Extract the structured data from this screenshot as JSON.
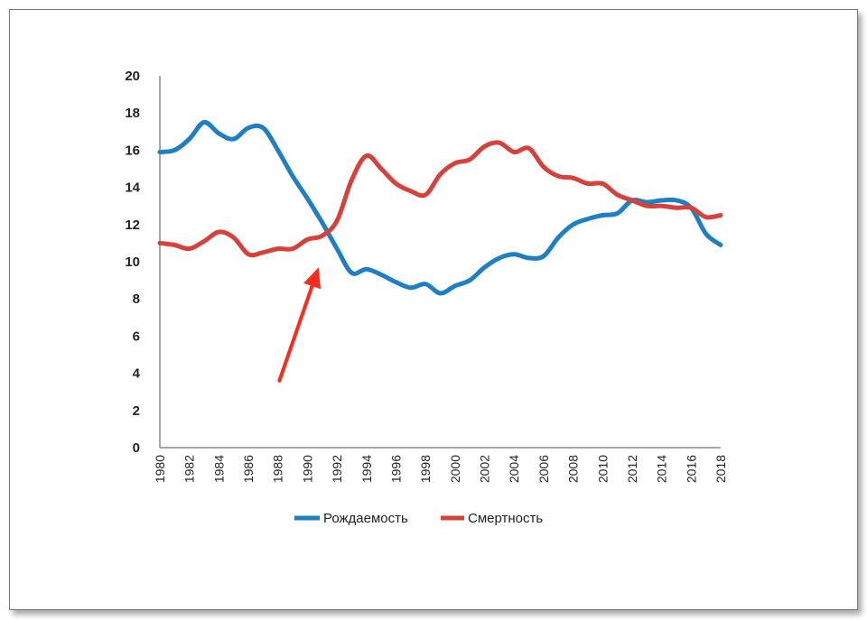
{
  "chart_data": {
    "type": "line",
    "title": "",
    "xlabel": "",
    "ylabel": "",
    "ylim": [
      0,
      20
    ],
    "yticks": [
      0,
      2,
      4,
      6,
      8,
      10,
      12,
      14,
      16,
      18,
      20
    ],
    "xlim": [
      1980,
      2018
    ],
    "xticks": [
      "1980",
      "1982",
      "1984",
      "1986",
      "1988",
      "1990",
      "1992",
      "1994",
      "1996",
      "1998",
      "2000",
      "2002",
      "2004",
      "2006",
      "2008",
      "2010",
      "2012",
      "2014",
      "2016",
      "2018"
    ],
    "grid": false,
    "legend_position": "bottom",
    "x": [
      1980,
      1981,
      1982,
      1983,
      1984,
      1985,
      1986,
      1987,
      1988,
      1989,
      1990,
      1991,
      1992,
      1993,
      1994,
      1995,
      1996,
      1997,
      1998,
      1999,
      2000,
      2001,
      2002,
      2003,
      2004,
      2005,
      2006,
      2007,
      2008,
      2009,
      2010,
      2011,
      2012,
      2013,
      2014,
      2015,
      2016,
      2017,
      2018
    ],
    "series": [
      {
        "name": "Рождаемость",
        "color": "#1f7fc4",
        "values": [
          15.9,
          16.0,
          16.6,
          17.5,
          16.9,
          16.6,
          17.2,
          17.2,
          16.0,
          14.6,
          13.4,
          12.1,
          10.7,
          9.4,
          9.6,
          9.3,
          8.9,
          8.6,
          8.8,
          8.3,
          8.7,
          9.0,
          9.7,
          10.2,
          10.4,
          10.2,
          10.3,
          11.3,
          12.0,
          12.3,
          12.5,
          12.6,
          13.3,
          13.2,
          13.3,
          13.3,
          12.9,
          11.5,
          10.9
        ]
      },
      {
        "name": "Смертность",
        "color": "#d8403a",
        "values": [
          11.0,
          10.9,
          10.7,
          11.1,
          11.6,
          11.3,
          10.4,
          10.5,
          10.7,
          10.7,
          11.2,
          11.4,
          12.2,
          14.4,
          15.7,
          15.0,
          14.2,
          13.8,
          13.6,
          14.7,
          15.3,
          15.5,
          16.2,
          16.4,
          15.9,
          16.1,
          15.1,
          14.6,
          14.5,
          14.2,
          14.2,
          13.6,
          13.3,
          13.0,
          13.0,
          12.9,
          12.9,
          12.4,
          12.5
        ]
      }
    ],
    "annotations": [
      {
        "type": "arrow",
        "color": "#ff2a1a",
        "points_to_year": 1991,
        "points_to_value": 9.6
      }
    ]
  }
}
